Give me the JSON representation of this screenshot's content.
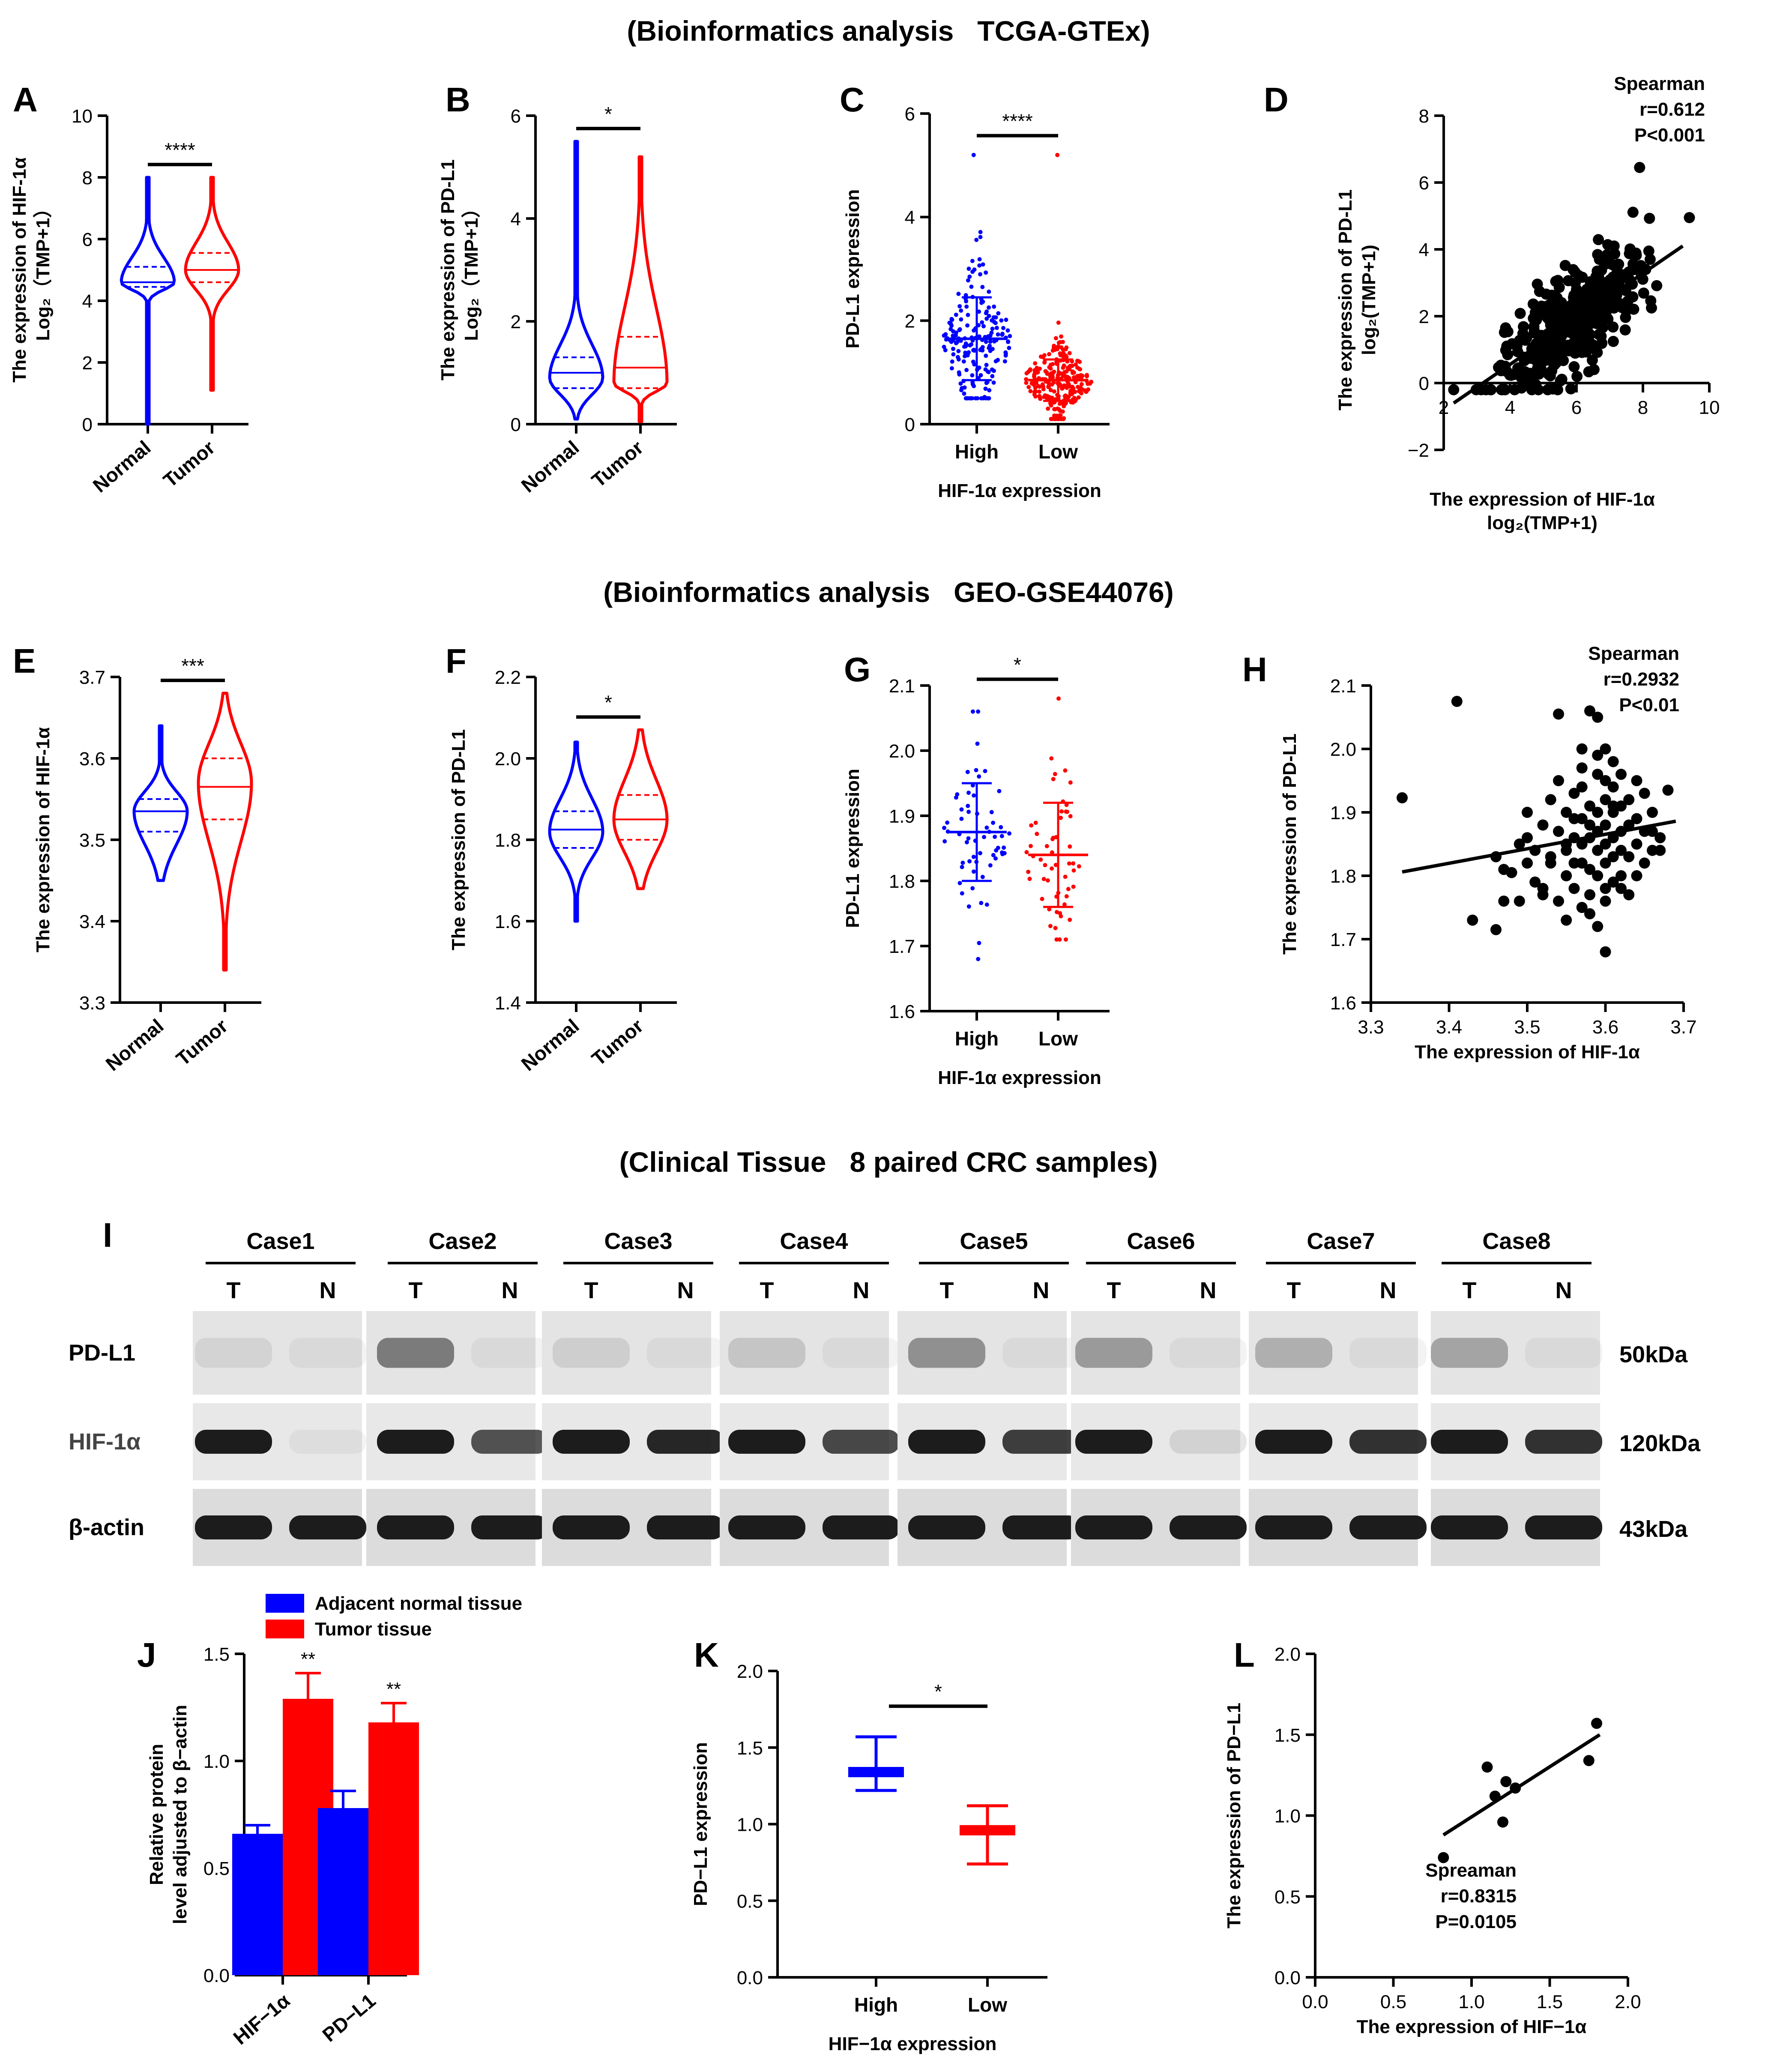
{
  "sections": [
    "(Bioinformatics analysis   TCGA-GTEx)",
    "(Bioinformatics analysis   GEO-GSE44076)",
    "(Clinical Tissue   8 paired CRC samples)"
  ],
  "colors": {
    "blue": "#0000ff",
    "red": "#ff0000",
    "black": "#000000"
  },
  "chart_data": [
    {
      "id": "A",
      "type": "violin",
      "ylabel": [
        "The expression of HIF-1α",
        "Log₂（TMP+1）"
      ],
      "categories": [
        "Normal",
        "Tumor"
      ],
      "yticks": [
        "0",
        "2",
        "4",
        "6",
        "8",
        "10"
      ],
      "ylim": [
        0,
        10
      ],
      "sig": "****",
      "groups": [
        {
          "min": 0,
          "max": 8,
          "q1": 4.45,
          "median": 4.6,
          "q3": 5.1,
          "mode": 4.6,
          "color": "#0000ff"
        },
        {
          "min": 1.1,
          "max": 8,
          "q1": 4.6,
          "median": 5.0,
          "q3": 5.55,
          "mode": 5.0,
          "color": "#ff0000"
        }
      ]
    },
    {
      "id": "B",
      "type": "violin",
      "ylabel": [
        "The expression of PD-L1",
        "Log₂（TMP+1）"
      ],
      "categories": [
        "Normal",
        "Tumor"
      ],
      "yticks": [
        "0",
        "2",
        "4",
        "6"
      ],
      "ylim": [
        0,
        6
      ],
      "sig": "*",
      "groups": [
        {
          "min": 0.1,
          "max": 5.5,
          "q1": 0.7,
          "median": 1.0,
          "q3": 1.3,
          "mode": 0.9,
          "color": "#0000ff"
        },
        {
          "min": 0.05,
          "max": 5.2,
          "q1": 0.7,
          "median": 1.1,
          "q3": 1.7,
          "mode": 0.8,
          "color": "#ff0000"
        }
      ]
    },
    {
      "id": "C",
      "type": "scatter-dot",
      "ylabel": "PD-L1 expression",
      "xlabel": "HIF-1α expression",
      "categories": [
        "High",
        "Low"
      ],
      "yticks": [
        "0",
        "2",
        "4",
        "6"
      ],
      "ylim": [
        0,
        6
      ],
      "sig": "****",
      "groups": [
        {
          "mean": 1.65,
          "sd_low": 0.85,
          "sd_high": 2.45,
          "min": 0.5,
          "max": 5.2,
          "n": 190,
          "color": "#0000ff"
        },
        {
          "mean": 0.85,
          "sd_low": 0.45,
          "sd_high": 1.25,
          "min": 0.1,
          "max": 5.2,
          "n": 260,
          "color": "#ff0000"
        }
      ]
    },
    {
      "id": "D",
      "type": "scatter",
      "ylabel": [
        "The expression of PD-L1",
        "log₂(TMP+1)"
      ],
      "xlabel": [
        "The expression of HIF-1α",
        "log₂(TMP+1)"
      ],
      "xticks": [
        "2",
        "4",
        "6",
        "8",
        "10"
      ],
      "yticks": [
        "−2",
        "0",
        "2",
        "4",
        "6",
        "8"
      ],
      "xlim": [
        2,
        10
      ],
      "ylim": [
        -2,
        8
      ],
      "stat": [
        "Spearman",
        "r=0.612",
        "P<0.001"
      ],
      "fit": {
        "x1": 2.3,
        "y1": -0.6,
        "x2": 9.2,
        "y2": 4.1
      },
      "n": 420
    },
    {
      "id": "E",
      "type": "violin",
      "ylabel": "The expression of HIF-1α",
      "categories": [
        "Normal",
        "Tumor"
      ],
      "yticks": [
        "3.3",
        "3.4",
        "3.5",
        "3.6",
        "3.7"
      ],
      "ylim": [
        3.3,
        3.7
      ],
      "sig": "***",
      "groups": [
        {
          "min": 3.45,
          "max": 3.64,
          "q1": 3.51,
          "median": 3.535,
          "q3": 3.55,
          "mode": 3.535,
          "color": "#0000ff"
        },
        {
          "min": 3.34,
          "max": 3.68,
          "q1": 3.525,
          "median": 3.565,
          "q3": 3.6,
          "mode": 3.57,
          "color": "#ff0000"
        }
      ]
    },
    {
      "id": "F",
      "type": "violin",
      "ylabel": "The expression of PD-L1",
      "categories": [
        "Normal",
        "Tumor"
      ],
      "yticks": [
        "1.4",
        "1.6",
        "1.8",
        "2.0",
        "2.2"
      ],
      "ylim": [
        1.4,
        2.2
      ],
      "sig": "*",
      "groups": [
        {
          "min": 1.6,
          "max": 2.04,
          "q1": 1.78,
          "median": 1.825,
          "q3": 1.87,
          "mode": 1.82,
          "color": "#0000ff"
        },
        {
          "min": 1.68,
          "max": 2.07,
          "q1": 1.8,
          "median": 1.85,
          "q3": 1.91,
          "mode": 1.85,
          "color": "#ff0000"
        }
      ]
    },
    {
      "id": "G",
      "type": "scatter-dot",
      "ylabel": "PD-L1 expression",
      "xlabel": "HIF-1α expression",
      "categories": [
        "High",
        "Low"
      ],
      "yticks": [
        "1.6",
        "1.7",
        "1.8",
        "1.9",
        "2.0",
        "2.1"
      ],
      "ylim": [
        1.6,
        2.1
      ],
      "sig": "*",
      "groups": [
        {
          "mean": 1.875,
          "sd_low": 1.8,
          "sd_high": 1.95,
          "min": 1.68,
          "max": 2.06,
          "n": 60,
          "color": "#0000ff"
        },
        {
          "mean": 1.84,
          "sd_low": 1.76,
          "sd_high": 1.92,
          "min": 1.71,
          "max": 2.08,
          "n": 55,
          "color": "#ff0000"
        }
      ]
    },
    {
      "id": "H",
      "type": "scatter",
      "ylabel": "The expression of PD-L1",
      "xlabel": "The expression of HIF-1α",
      "xticks": [
        "3.3",
        "3.4",
        "3.5",
        "3.6",
        "3.7"
      ],
      "yticks": [
        "1.6",
        "1.7",
        "1.8",
        "1.9",
        "2.0",
        "2.1"
      ],
      "xlim": [
        3.3,
        3.7
      ],
      "ylim": [
        1.6,
        2.1
      ],
      "stat": [
        "Spearman",
        "r=0.2932",
        "P<0.01"
      ],
      "fit": {
        "x1": 3.34,
        "y1": 1.806,
        "x2": 3.69,
        "y2": 1.886
      },
      "points": [
        [
          3.34,
          1.923
        ],
        [
          3.41,
          2.075
        ],
        [
          3.43,
          1.73
        ],
        [
          3.46,
          1.715
        ],
        [
          3.47,
          1.76
        ],
        [
          3.48,
          1.805
        ],
        [
          3.49,
          1.85
        ],
        [
          3.5,
          1.82
        ],
        [
          3.5,
          1.86
        ],
        [
          3.51,
          1.79
        ],
        [
          3.51,
          1.84
        ],
        [
          3.52,
          1.77
        ],
        [
          3.52,
          1.88
        ],
        [
          3.53,
          1.82
        ],
        [
          3.53,
          1.83
        ],
        [
          3.54,
          1.76
        ],
        [
          3.54,
          2.055
        ],
        [
          3.54,
          1.95
        ],
        [
          3.55,
          1.73
        ],
        [
          3.55,
          1.8
        ],
        [
          3.55,
          1.85
        ],
        [
          3.55,
          1.9
        ],
        [
          3.56,
          1.86
        ],
        [
          3.56,
          1.89
        ],
        [
          3.56,
          1.93
        ],
        [
          3.56,
          1.78
        ],
        [
          3.57,
          1.75
        ],
        [
          3.57,
          1.82
        ],
        [
          3.57,
          1.85
        ],
        [
          3.57,
          1.89
        ],
        [
          3.57,
          1.94
        ],
        [
          3.57,
          2.0
        ],
        [
          3.58,
          1.77
        ],
        [
          3.58,
          1.81
        ],
        [
          3.58,
          1.86
        ],
        [
          3.58,
          1.88
        ],
        [
          3.58,
          1.91
        ],
        [
          3.58,
          2.06
        ],
        [
          3.59,
          1.72
        ],
        [
          3.59,
          1.8
        ],
        [
          3.59,
          1.84
        ],
        [
          3.59,
          1.87
        ],
        [
          3.59,
          1.9
        ],
        [
          3.59,
          1.96
        ],
        [
          3.59,
          2.05
        ],
        [
          3.6,
          1.68
        ],
        [
          3.6,
          1.78
        ],
        [
          3.6,
          1.82
        ],
        [
          3.6,
          1.85
        ],
        [
          3.6,
          1.88
        ],
        [
          3.6,
          1.92
        ],
        [
          3.6,
          1.95
        ],
        [
          3.6,
          2.0
        ],
        [
          3.61,
          1.79
        ],
        [
          3.61,
          1.83
        ],
        [
          3.61,
          1.86
        ],
        [
          3.61,
          1.9
        ],
        [
          3.61,
          1.94
        ],
        [
          3.61,
          1.98
        ],
        [
          3.62,
          1.8
        ],
        [
          3.62,
          1.84
        ],
        [
          3.62,
          1.87
        ],
        [
          3.62,
          1.91
        ],
        [
          3.62,
          1.96
        ],
        [
          3.63,
          1.77
        ],
        [
          3.63,
          1.83
        ],
        [
          3.63,
          1.88
        ],
        [
          3.63,
          1.92
        ],
        [
          3.64,
          1.85
        ],
        [
          3.64,
          1.89
        ],
        [
          3.64,
          1.95
        ],
        [
          3.65,
          1.82
        ],
        [
          3.65,
          1.87
        ],
        [
          3.65,
          1.93
        ],
        [
          3.66,
          1.84
        ],
        [
          3.66,
          1.9
        ],
        [
          3.67,
          1.86
        ],
        [
          3.67,
          1.84
        ],
        [
          3.68,
          1.935
        ],
        [
          3.53,
          1.92
        ],
        [
          3.52,
          1.78
        ],
        [
          3.49,
          1.76
        ],
        [
          3.47,
          1.81
        ],
        [
          3.46,
          1.83
        ],
        [
          3.5,
          1.9
        ],
        [
          3.54,
          1.87
        ],
        [
          3.56,
          1.82
        ],
        [
          3.58,
          1.74
        ],
        [
          3.6,
          1.76
        ],
        [
          3.62,
          1.78
        ],
        [
          3.64,
          1.8
        ],
        [
          3.66,
          1.87
        ],
        [
          3.55,
          1.84
        ],
        [
          3.57,
          1.97
        ],
        [
          3.59,
          1.99
        ],
        [
          3.61,
          1.91
        ]
      ]
    },
    {
      "id": "J",
      "type": "bar",
      "ylabel": [
        "Relative protein",
        "level adjusted to β−actin"
      ],
      "categories": [
        "HIF−1α",
        "PD−L1"
      ],
      "yticks": [
        "0.0",
        "0.5",
        "1.0",
        "1.5"
      ],
      "ylim": [
        0,
        1.5
      ],
      "legend": [
        "Adjacent normal tissue",
        "Tumor tissue"
      ],
      "series": [
        {
          "name": "Adjacent normal tissue",
          "values": [
            0.66,
            0.78
          ],
          "err": [
            0.04,
            0.08
          ],
          "color": "#0000ff"
        },
        {
          "name": "Tumor tissue",
          "values": [
            1.29,
            1.18
          ],
          "err": [
            0.12,
            0.09
          ],
          "color": "#ff0000"
        }
      ],
      "sig": [
        "**",
        "**"
      ]
    },
    {
      "id": "K",
      "type": "mean-range",
      "ylabel": "PD−L1 expression",
      "xlabel": "HIF−1α expression",
      "categories": [
        "High",
        "Low"
      ],
      "yticks": [
        "0.0",
        "0.5",
        "1.0",
        "1.5",
        "2.0"
      ],
      "ylim": [
        0,
        2
      ],
      "sig": "*",
      "groups": [
        {
          "mean": 1.34,
          "low": 1.22,
          "high": 1.57,
          "color": "#0000ff"
        },
        {
          "mean": 0.96,
          "low": 0.74,
          "high": 1.12,
          "color": "#ff0000"
        }
      ]
    },
    {
      "id": "L",
      "type": "scatter",
      "ylabel": "The expression of PD−L1",
      "xlabel": "The expression of HIF−1α",
      "xticks": [
        "0.0",
        "0.5",
        "1.0",
        "1.5",
        "2.0"
      ],
      "yticks": [
        "0.0",
        "0.5",
        "1.0",
        "1.5",
        "2.0"
      ],
      "xlim": [
        0,
        2
      ],
      "ylim": [
        0,
        2
      ],
      "stat": [
        "Spreaman",
        "r=0.8315",
        "P=0.0105"
      ],
      "fit": {
        "x1": 0.82,
        "y1": 0.88,
        "x2": 1.82,
        "y2": 1.5
      },
      "points": [
        [
          0.82,
          0.74
        ],
        [
          1.1,
          1.3
        ],
        [
          1.15,
          1.12
        ],
        [
          1.2,
          0.96
        ],
        [
          1.22,
          1.21
        ],
        [
          1.28,
          1.17
        ],
        [
          1.75,
          1.34
        ],
        [
          1.8,
          1.57
        ]
      ]
    }
  ],
  "blot": {
    "panel_letter": "I",
    "cases": [
      "Case1",
      "Case2",
      "Case3",
      "Case4",
      "Case5",
      "Case6",
      "Case7",
      "Case8"
    ],
    "lane_labels": [
      "T",
      "N"
    ],
    "proteins": [
      "PD-L1",
      "HIF-1α",
      "β-actin"
    ],
    "sizes": [
      "50kDa",
      "120kDa",
      "43kDa"
    ]
  }
}
